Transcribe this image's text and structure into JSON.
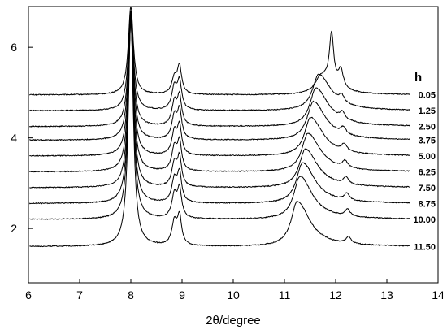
{
  "chart_data": {
    "type": "line",
    "xlabel": "2θ/degree",
    "ylabel": "",
    "xlim": [
      6,
      14
    ],
    "ylim": [
      0.8,
      6.9
    ],
    "xticks": [
      6,
      7,
      8,
      9,
      10,
      11,
      12,
      13,
      14
    ],
    "yticks": [
      2,
      4,
      6
    ],
    "grid": false,
    "legend_title": "h",
    "legend_placement": "right, each label at end of its curve",
    "peaks": [
      {
        "center": 8.0,
        "width": 0.06
      },
      {
        "center": 8.85,
        "width": 0.06
      },
      {
        "center": 8.95,
        "width": 0.05
      },
      {
        "center_start": 11.72,
        "center_end": 11.25,
        "width": 0.18
      },
      {
        "center_start": 11.92,
        "center_end": 11.6,
        "width": 0.05
      },
      {
        "center_start": 12.1,
        "center_end": 12.25,
        "width": 0.06
      }
    ],
    "series": [
      {
        "name": "0.05",
        "baseline": 4.95,
        "peak_heights": [
          1.95,
          0.35,
          0.6,
          0.4,
          1.1,
          0.4
        ]
      },
      {
        "name": "1.25",
        "baseline": 4.6,
        "peak_heights": [
          2.2,
          0.5,
          0.6,
          0.8,
          0.0,
          0.15
        ]
      },
      {
        "name": "2.50",
        "baseline": 4.25,
        "peak_heights": [
          2.5,
          0.5,
          0.62,
          0.85,
          0.0,
          0.15
        ]
      },
      {
        "name": "3.75",
        "baseline": 3.95,
        "peak_heights": [
          2.75,
          0.5,
          0.62,
          0.85,
          0.0,
          0.15
        ]
      },
      {
        "name": "5.00",
        "baseline": 3.6,
        "peak_heights": [
          3.05,
          0.5,
          0.62,
          0.85,
          0.0,
          0.15
        ]
      },
      {
        "name": "6.25",
        "baseline": 3.25,
        "peak_heights": [
          3.4,
          0.5,
          0.62,
          0.85,
          0.0,
          0.15
        ]
      },
      {
        "name": "7.50",
        "baseline": 2.9,
        "peak_heights": [
          3.7,
          0.5,
          0.62,
          0.85,
          0.0,
          0.15
        ]
      },
      {
        "name": "8.75",
        "baseline": 2.55,
        "peak_heights": [
          4.05,
          0.5,
          0.62,
          0.9,
          0.0,
          0.15
        ]
      },
      {
        "name": "10.00",
        "baseline": 2.2,
        "peak_heights": [
          4.4,
          0.5,
          0.62,
          0.95,
          0.0,
          0.15
        ]
      },
      {
        "name": "11.50",
        "baseline": 1.6,
        "peak_heights": [
          5.0,
          0.5,
          0.62,
          1.0,
          0.0,
          0.15
        ]
      }
    ],
    "line_color": "#000000"
  }
}
